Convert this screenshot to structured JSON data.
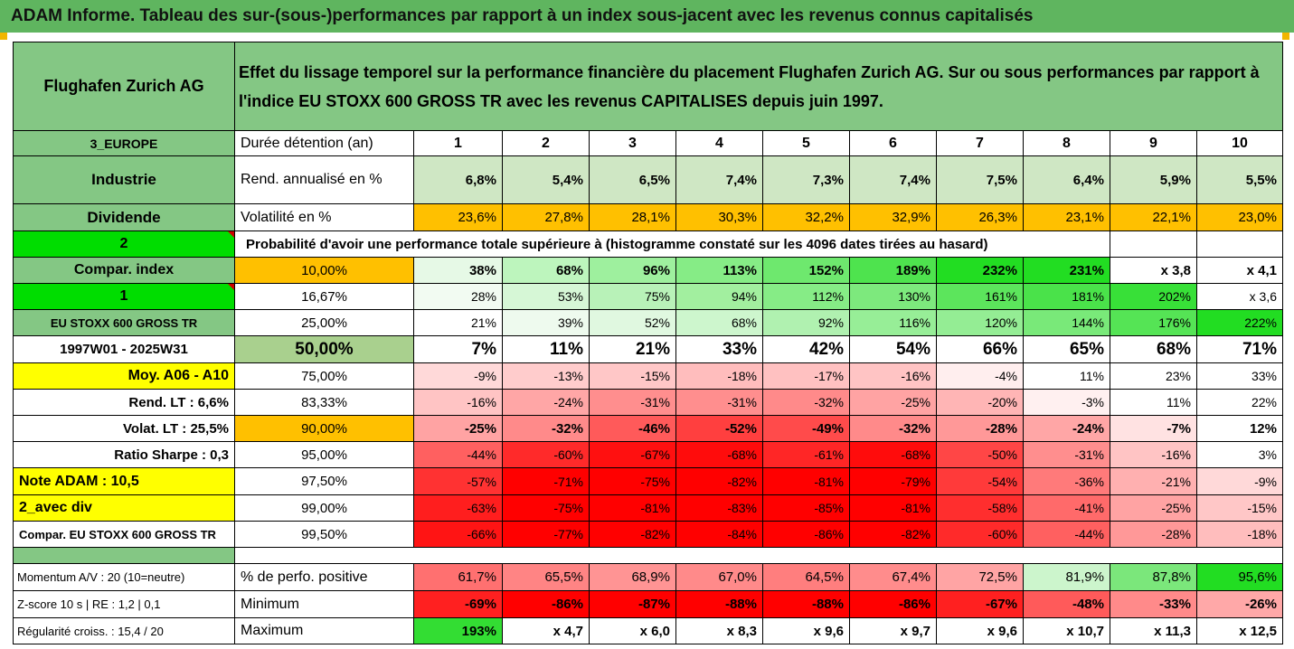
{
  "title": "ADAM Informe. Tableau des sur-(sous-)performances par rapport à un index sous-jacent avec les revenus connus capitalisés",
  "company": "Flughafen Zurich AG",
  "description": "Effet du lissage temporel sur la performance financière du placement Flughafen Zurich AG. Sur ou sous performances par rapport à l'indice EU STOXX 600 GROSS TR avec les revenus CAPITALISES depuis juin 1997.",
  "left_labels": {
    "region": "3_EUROPE",
    "sector": "Industrie",
    "dividend": "Dividende",
    "dividend_num": "2",
    "compar_index": "Compar. index",
    "compar_num": "1",
    "index_name": "EU STOXX 600 GROSS TR",
    "period": "1997W01 - 2025W31",
    "moy": "Moy. A06 - A10",
    "rend_lt": "Rend. LT :   6,6%",
    "volat_lt": "Volat. LT :   25,5%",
    "sharpe": "Ratio Sharpe :   0,3",
    "note": "Note ADAM : 10,5",
    "avec_div": "2_avec div",
    "compar_full": "Compar. EU STOXX 600 GROSS TR",
    "momentum": "Momentum A/V : 20 (10=neutre)",
    "zscore": "Z-score 10 s  | RE : 1,2 | 0,1",
    "regularite": "Régularité croiss. : 15,4 / 20"
  },
  "stats_labels": {
    "duree": "Durée détention (an)",
    "rend": "Rend. annualisé en %",
    "volat": "Volatilité en %",
    "proba": "Probabilité d'avoir une performance totale supérieure à (histogramme constaté sur les 4096 dates tirées au hasard)",
    "positive": "% de perfo. positive",
    "minimum": "Minimum",
    "maximum": "Maximum"
  },
  "years": [
    "1",
    "2",
    "3",
    "4",
    "5",
    "6",
    "7",
    "8",
    "9",
    "10"
  ],
  "rend": [
    "6,8%",
    "5,4%",
    "6,5%",
    "7,4%",
    "7,3%",
    "7,4%",
    "7,5%",
    "6,4%",
    "5,9%",
    "5,5%"
  ],
  "volat": [
    "23,6%",
    "27,8%",
    "28,1%",
    "30,3%",
    "32,2%",
    "32,9%",
    "26,3%",
    "23,1%",
    "22,1%",
    "23,0%"
  ],
  "perc_rows": [
    {
      "p": "10,00%",
      "v": [
        "38%",
        "68%",
        "96%",
        "113%",
        "152%",
        "189%",
        "232%",
        "231%",
        "x 3,8",
        "x 4,1"
      ],
      "c": [
        "#e6f9e6",
        "#bdf5bd",
        "#9ef09e",
        "#86ec86",
        "#6ee86e",
        "#4ee34e",
        "#22dd22",
        "#22dd22",
        "#ffffff",
        "#ffffff"
      ]
    },
    {
      "p": "16,67%",
      "v": [
        "28%",
        "53%",
        "75%",
        "94%",
        "112%",
        "130%",
        "161%",
        "181%",
        "202%",
        "x 3,6"
      ],
      "c": [
        "#f2fbf2",
        "#d6f7d6",
        "#b8f2b8",
        "#a2ef9f",
        "#86ec86",
        "#7de97d",
        "#5ce55c",
        "#4ae24a",
        "#38e038",
        "#ffffff"
      ]
    },
    {
      "p": "25,00%",
      "v": [
        "21%",
        "39%",
        "52%",
        "68%",
        "92%",
        "116%",
        "120%",
        "144%",
        "176%",
        "222%"
      ],
      "c": [
        "#ffffff",
        "#eefaee",
        "#e0f8e0",
        "#cdf6cd",
        "#b0f1b0",
        "#97ee97",
        "#94ed94",
        "#79e979",
        "#55e455",
        "#22dd22"
      ]
    },
    {
      "p": "50,00%",
      "v": [
        "7%",
        "11%",
        "21%",
        "33%",
        "42%",
        "54%",
        "66%",
        "65%",
        "68%",
        "71%"
      ],
      "c": [
        "#ffffff",
        "#ffffff",
        "#ffffff",
        "#ffffff",
        "#ffffff",
        "#ffffff",
        "#ffffff",
        "#ffffff",
        "#ffffff",
        "#ffffff"
      ]
    },
    {
      "p": "75,00%",
      "v": [
        "-9%",
        "-13%",
        "-15%",
        "-18%",
        "-17%",
        "-16%",
        "-4%",
        "11%",
        "23%",
        "33%"
      ],
      "c": [
        "#ffd9d9",
        "#ffcccc",
        "#ffc7c7",
        "#ffbdbd",
        "#ffc1c1",
        "#ffc4c4",
        "#ffeeee",
        "#ffffff",
        "#ffffff",
        "#ffffff"
      ]
    },
    {
      "p": "83,33%",
      "v": [
        "-16%",
        "-24%",
        "-31%",
        "-31%",
        "-32%",
        "-25%",
        "-20%",
        "-3%",
        "11%",
        "22%"
      ],
      "c": [
        "#ffc4c4",
        "#ffa6a6",
        "#ff8e8e",
        "#ff8e8e",
        "#ff8a8a",
        "#ffa3a3",
        "#ffb5b5",
        "#fff0f0",
        "#ffffff",
        "#ffffff"
      ]
    },
    {
      "p": "90,00%",
      "v": [
        "-25%",
        "-32%",
        "-46%",
        "-52%",
        "-49%",
        "-32%",
        "-28%",
        "-24%",
        "-7%",
        "12%"
      ],
      "c": [
        "#ffa3a3",
        "#ff8a8a",
        "#ff5a5a",
        "#ff3f3f",
        "#ff4b4b",
        "#ff8a8a",
        "#ff9898",
        "#ffa6a6",
        "#ffe2e2",
        "#ffffff"
      ]
    },
    {
      "p": "95,00%",
      "v": [
        "-44%",
        "-60%",
        "-67%",
        "-68%",
        "-61%",
        "-68%",
        "-50%",
        "-31%",
        "-16%",
        "3%"
      ],
      "c": [
        "#ff6060",
        "#ff2a2a",
        "#ff1010",
        "#ff0c0c",
        "#ff2626",
        "#ff0c0c",
        "#ff4646",
        "#ff8e8e",
        "#ffc4c4",
        "#ffffff"
      ]
    },
    {
      "p": "97,50%",
      "v": [
        "-57%",
        "-71%",
        "-75%",
        "-82%",
        "-81%",
        "-79%",
        "-54%",
        "-36%",
        "-21%",
        "-9%"
      ],
      "c": [
        "#ff3232",
        "#ff0000",
        "#ff0000",
        "#ff0000",
        "#ff0000",
        "#ff0000",
        "#ff3a3a",
        "#ff7a7a",
        "#ffb0b0",
        "#ffd9d9"
      ]
    },
    {
      "p": "99,00%",
      "v": [
        "-63%",
        "-75%",
        "-81%",
        "-83%",
        "-85%",
        "-81%",
        "-58%",
        "-41%",
        "-25%",
        "-15%"
      ],
      "c": [
        "#ff1e1e",
        "#ff0000",
        "#ff0000",
        "#ff0000",
        "#ff0000",
        "#ff0000",
        "#ff2e2e",
        "#ff6a6a",
        "#ffa3a3",
        "#ffc7c7"
      ]
    },
    {
      "p": "99,50%",
      "v": [
        "-66%",
        "-77%",
        "-82%",
        "-84%",
        "-86%",
        "-82%",
        "-60%",
        "-44%",
        "-28%",
        "-18%"
      ],
      "c": [
        "#ff1414",
        "#ff0000",
        "#ff0000",
        "#ff0000",
        "#ff0000",
        "#ff0000",
        "#ff2a2a",
        "#ff6060",
        "#ff9898",
        "#ffbdbd"
      ]
    }
  ],
  "positive": [
    "61,7%",
    "65,5%",
    "68,9%",
    "67,0%",
    "64,5%",
    "67,4%",
    "72,5%",
    "81,9%",
    "87,8%",
    "95,6%"
  ],
  "positive_colors": [
    "#ff7070",
    "#ff8484",
    "#ff9494",
    "#ff8a8a",
    "#ff7e7e",
    "#ff8c8c",
    "#ffa4a4",
    "#ccf5cc",
    "#7be77b",
    "#22dd22"
  ],
  "minimum": [
    "-69%",
    "-86%",
    "-87%",
    "-88%",
    "-88%",
    "-86%",
    "-67%",
    "-48%",
    "-33%",
    "-26%"
  ],
  "minimum_colors": [
    "#ff2020",
    "#ff0000",
    "#ff0000",
    "#ff0000",
    "#ff0000",
    "#ff0000",
    "#ff2020",
    "#ff5a5a",
    "#ff8a8a",
    "#ffa8a8"
  ],
  "maximum": [
    "193%",
    "x 4,7",
    "x 6,0",
    "x 8,3",
    "x 9,6",
    "x 9,7",
    "x 9,6",
    "x 10,7",
    "x 11,3",
    "x 12,5"
  ],
  "maximum_colors": [
    "#33dd33",
    "#ffffff",
    "#ffffff",
    "#ffffff",
    "#ffffff",
    "#ffffff",
    "#ffffff",
    "#ffffff",
    "#ffffff",
    "#ffffff"
  ],
  "colors": {
    "header_green": "#5fb55f",
    "light_green": "#84c784",
    "bright_green": "#00dd00",
    "yellow": "#ffff00",
    "orange": "#ffc000",
    "pale_green": "#cfe7c4",
    "red_text": "#e00000"
  }
}
